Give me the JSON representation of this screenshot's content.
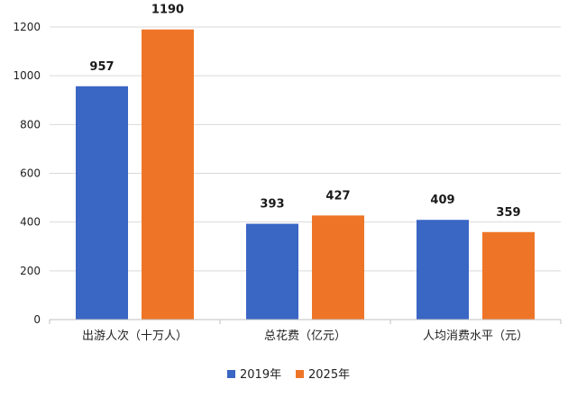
{
  "chart_data": {
    "type": "bar",
    "title": "",
    "xlabel": "",
    "ylabel": "",
    "ylim": [
      0,
      1200
    ],
    "yticks": [
      0,
      200,
      400,
      600,
      800,
      1000,
      1200
    ],
    "grid": true,
    "legend_position": "bottom-center",
    "categories": [
      "出游人次（十万人）",
      "总花费（亿元）",
      "人均消费水平（元）"
    ],
    "series": [
      {
        "name": "2019年",
        "color": "#3a66c4",
        "values": [
          957,
          393,
          409
        ]
      },
      {
        "name": "2025年",
        "color": "#ee7527",
        "values": [
          1190,
          427,
          359
        ]
      }
    ]
  }
}
